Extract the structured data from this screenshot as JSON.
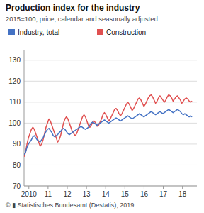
{
  "chart_data": {
    "type": "line",
    "title": "Production index for the industry",
    "subtitle": "2015=100; price, calendar and seasonally adjusted",
    "footer": "©  ▮ Statistisches Bundesamt (Destatis), 2019",
    "xlim": [
      2009.75,
      2018.75
    ],
    "xticks": [
      2010,
      {
        "value": 2011,
        "label": "11"
      },
      {
        "value": 2012,
        "label": "12"
      },
      {
        "value": 2013,
        "label": "13"
      },
      {
        "value": 2014,
        "label": "14"
      },
      {
        "value": 2015,
        "label": "15"
      },
      {
        "value": 2016,
        "label": "16"
      },
      {
        "value": 2017,
        "label": "17"
      },
      {
        "value": 2018,
        "label": "18"
      }
    ],
    "ylim": [
      70,
      135
    ],
    "yticks": [
      70,
      80,
      90,
      100,
      110,
      120,
      130
    ],
    "grid": true,
    "legend": "top",
    "x": [
      2009.75,
      2009.8261,
      2009.9022,
      2009.9783,
      2010.0543,
      2010.1304,
      2010.2065,
      2010.2826,
      2010.3587,
      2010.4348,
      2010.5109,
      2010.587,
      2010.663,
      2010.7391,
      2010.8152,
      2010.8913,
      2010.9674,
      2011.0435,
      2011.1196,
      2011.1957,
      2011.2717,
      2011.3478,
      2011.4239,
      2011.5,
      2011.5761,
      2011.6522,
      2011.7283,
      2011.8043,
      2011.8804,
      2011.9565,
      2012.0326,
      2012.1087,
      2012.1848,
      2012.2609,
      2012.337,
      2012.413,
      2012.4891,
      2012.5652,
      2012.6413,
      2012.7174,
      2012.7935,
      2012.8696,
      2012.9457,
      2013.0217,
      2013.0978,
      2013.1739,
      2013.25,
      2013.3261,
      2013.4022,
      2013.4783,
      2013.5543,
      2013.6304,
      2013.7065,
      2013.7826,
      2013.8587,
      2013.9348,
      2014.0109,
      2014.087,
      2014.163,
      2014.2391,
      2014.3152,
      2014.3913,
      2014.4674,
      2014.5435,
      2014.6196,
      2014.6957,
      2014.7717,
      2014.8478,
      2014.9239,
      2015,
      2015.0761,
      2015.1522,
      2015.2283,
      2015.3043,
      2015.3804,
      2015.4565,
      2015.5326,
      2015.6087,
      2015.6848,
      2015.7609,
      2015.837,
      2015.913,
      2015.9891,
      2016.0652,
      2016.1413,
      2016.2174,
      2016.2935,
      2016.3696,
      2016.4457,
      2016.5217,
      2016.5978,
      2016.6739,
      2016.75,
      2016.8261,
      2016.9022,
      2016.9783,
      2017.0543,
      2017.1304,
      2017.2065,
      2017.2826,
      2017.3587,
      2017.4348,
      2017.5109,
      2017.587,
      2017.663,
      2017.7391,
      2017.8152,
      2017.8913,
      2017.9674,
      2018.0435,
      2018.1196,
      2018.1957,
      2018.2717,
      2018.3478,
      2018.4239,
      2018.5
    ],
    "series": [
      {
        "name": "Industry, total",
        "color": "#4472c4",
        "values": [
          85.0,
          86.0,
          88.5,
          90.0,
          91.0,
          92.0,
          93.5,
          94.0,
          93.0,
          92.0,
          91.5,
          91.0,
          92.0,
          93.0,
          94.5,
          96.0,
          97.0,
          97.5,
          96.5,
          95.5,
          94.0,
          93.5,
          94.0,
          94.5,
          95.5,
          96.0,
          97.0,
          97.5,
          97.0,
          96.0,
          95.0,
          94.5,
          95.0,
          95.5,
          96.0,
          96.5,
          97.0,
          97.5,
          98.0,
          98.5,
          98.0,
          97.5,
          97.0,
          97.5,
          98.0,
          99.0,
          100.0,
          100.5,
          100.0,
          99.5,
          99.0,
          99.5,
          100.0,
          100.5,
          101.0,
          101.5,
          101.0,
          100.5,
          100.0,
          100.5,
          101.0,
          101.5,
          102.0,
          102.5,
          102.0,
          101.5,
          101.0,
          101.5,
          102.0,
          102.5,
          103.0,
          103.5,
          103.0,
          102.5,
          102.0,
          102.5,
          103.0,
          103.5,
          104.0,
          104.5,
          104.0,
          103.5,
          103.0,
          103.5,
          104.0,
          104.5,
          105.0,
          105.5,
          105.0,
          104.5,
          104.0,
          104.5,
          105.0,
          105.5,
          105.0,
          104.5,
          105.0,
          105.5,
          106.0,
          106.5,
          106.0,
          105.5,
          105.0,
          105.5,
          106.0,
          106.5,
          106.0,
          105.5,
          104.5,
          104.0,
          104.5,
          104.0,
          103.5,
          103.0,
          103.5,
          103.0
        ]
      },
      {
        "name": "Construction",
        "color": "#e05050",
        "values": [
          84.0,
          86.0,
          90.0,
          93.0,
          95.0,
          97.0,
          98.0,
          97.0,
          95.0,
          93.0,
          91.0,
          89.0,
          90.0,
          92.0,
          95.0,
          98.0,
          100.0,
          102.0,
          101.0,
          99.0,
          97.0,
          95.0,
          93.0,
          91.0,
          92.0,
          94.0,
          97.0,
          100.0,
          102.0,
          103.0,
          102.0,
          100.0,
          98.0,
          96.0,
          95.0,
          94.0,
          95.0,
          97.0,
          99.0,
          101.0,
          103.0,
          104.0,
          103.0,
          101.0,
          99.0,
          98.0,
          99.0,
          100.5,
          101.0,
          100.0,
          98.5,
          99.0,
          100.5,
          102.0,
          104.0,
          105.0,
          104.0,
          102.5,
          101.0,
          102.0,
          103.5,
          105.0,
          106.5,
          107.0,
          106.0,
          104.5,
          103.5,
          104.5,
          106.0,
          107.5,
          109.0,
          110.0,
          109.0,
          107.5,
          106.0,
          107.0,
          108.5,
          110.0,
          111.5,
          112.0,
          111.0,
          109.5,
          108.0,
          109.0,
          110.5,
          112.0,
          113.0,
          113.5,
          112.5,
          111.0,
          109.5,
          110.5,
          112.0,
          113.0,
          112.0,
          111.0,
          110.0,
          111.0,
          112.5,
          113.5,
          113.0,
          112.0,
          110.5,
          111.5,
          112.5,
          113.0,
          112.0,
          111.0,
          109.5,
          110.5,
          111.5,
          112.0,
          111.5,
          110.5,
          110.0,
          110.5
        ]
      }
    ]
  }
}
